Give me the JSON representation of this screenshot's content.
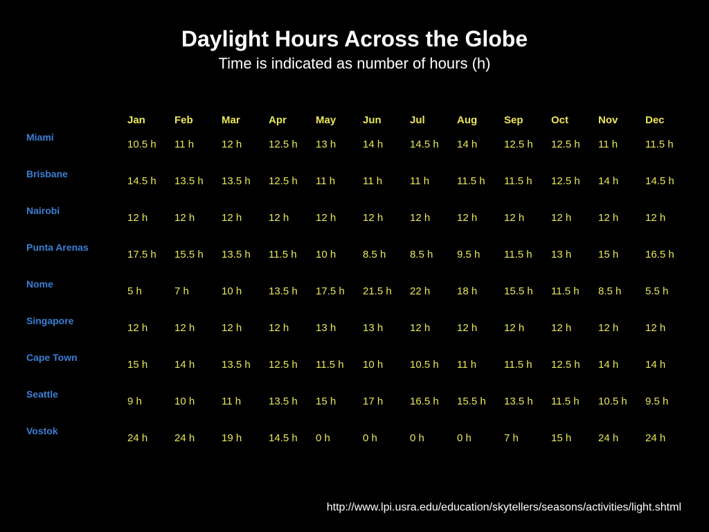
{
  "title": "Daylight Hours Across the Globe",
  "subtitle": "Time is indicated as number of hours (h)",
  "months": [
    "Jan",
    "Feb",
    "Mar",
    "Apr",
    "May",
    "Jun",
    "Jul",
    "Aug",
    "Sep",
    "Oct",
    "Nov",
    "Dec"
  ],
  "cities": [
    "Miami",
    "Brisbane",
    "Nairobi",
    "Punta Arenas",
    "Nome",
    "Singapore",
    "Cape Town",
    "Seattle",
    "Vostok"
  ],
  "rows": [
    [
      "10.5 h",
      "11 h",
      "12 h",
      "12.5 h",
      "13 h",
      "14 h",
      "14.5 h",
      "14 h",
      "12.5 h",
      "12.5 h",
      "11 h",
      "11.5 h"
    ],
    [
      "14.5 h",
      "13.5 h",
      "13.5 h",
      "12.5 h",
      "11 h",
      "11 h",
      "11 h",
      "11.5 h",
      "11.5 h",
      "12.5 h",
      "14 h",
      "14.5 h"
    ],
    [
      "12 h",
      "12 h",
      "12 h",
      "12 h",
      "12 h",
      "12 h",
      "12 h",
      "12 h",
      "12 h",
      "12 h",
      "12 h",
      "12 h"
    ],
    [
      "17.5 h",
      "15.5 h",
      "13.5 h",
      "11.5 h",
      "10 h",
      "8.5 h",
      "8.5 h",
      "9.5 h",
      "11.5 h",
      "13 h",
      "15 h",
      "16.5 h"
    ],
    [
      "5 h",
      "7 h",
      "10 h",
      "13.5 h",
      "17.5 h",
      "21.5 h",
      "22 h",
      "18 h",
      "15.5 h",
      "11.5 h",
      "8.5 h",
      "5.5 h"
    ],
    [
      "12 h",
      "12 h",
      "12 h",
      "12 h",
      "13 h",
      "13 h",
      "12 h",
      "12 h",
      "12 h",
      "12 h",
      "12 h",
      "12 h"
    ],
    [
      "15 h",
      "14 h",
      "13.5 h",
      "12.5 h",
      "11.5 h",
      "10 h",
      "10.5 h",
      "11 h",
      "11.5 h",
      "12.5 h",
      "14 h",
      "14 h"
    ],
    [
      "9 h",
      "10 h",
      "11 h",
      "13.5 h",
      "15 h",
      "17 h",
      "16.5 h",
      "15.5 h",
      "13.5 h",
      "11.5 h",
      "10.5 h",
      "9.5 h"
    ],
    [
      "24 h",
      "24 h",
      "19 h",
      "14.5 h",
      "0 h",
      "0 h",
      "0 h",
      "0 h",
      "7 h",
      "15 h",
      "24 h",
      "24 h"
    ]
  ],
  "source": "http://www.lpi.usra.edu/education/skytellers/seasons/activities/light.shtml",
  "colors": {
    "background": "#000000",
    "title": "#ffffff",
    "city": "#3a7fd5",
    "value": "#eae85a"
  }
}
